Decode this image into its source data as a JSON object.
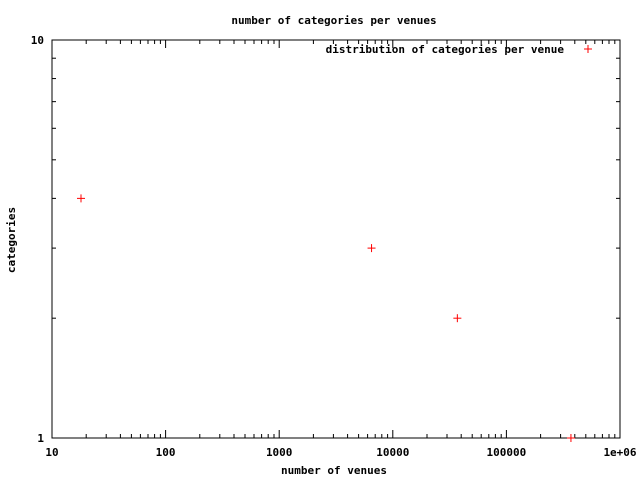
{
  "chart_data": {
    "type": "scatter",
    "title": "number of categories per venues",
    "xlabel": "number of venues",
    "ylabel": "categories",
    "xscale": "log",
    "yscale": "log",
    "xlim": [
      10,
      1000000
    ],
    "ylim": [
      1,
      10
    ],
    "x_ticks": [
      "10",
      "100",
      "1000",
      "10000",
      "100000",
      "1e+06"
    ],
    "y_ticks": [
      "1",
      "10"
    ],
    "grid": false,
    "legend_position": "top-right",
    "series": [
      {
        "name": "distribution of categories per venue",
        "color": "#ff0000",
        "marker": "plus",
        "points": [
          {
            "x": 18,
            "y": 4
          },
          {
            "x": 6500,
            "y": 3
          },
          {
            "x": 37000,
            "y": 2
          },
          {
            "x": 370000,
            "y": 1
          }
        ]
      }
    ]
  }
}
